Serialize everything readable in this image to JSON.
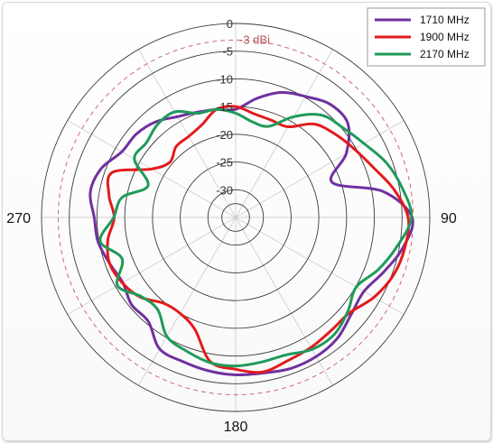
{
  "chart_data": {
    "type": "polar",
    "title": "",
    "radial_axis": {
      "ticks": [
        0,
        -5,
        -10,
        -15,
        -20,
        -25,
        -30
      ],
      "range": [
        -35,
        0
      ]
    },
    "reference": {
      "value": -3,
      "label": "-3 dBi",
      "style": "dashed",
      "color": "#c9646d"
    },
    "angle_labels": [
      {
        "angle": 90,
        "label": "90"
      },
      {
        "angle": 180,
        "label": "180"
      },
      {
        "angle": 270,
        "label": "270"
      }
    ],
    "angle_label_zero_shown": false,
    "spokes_every_deg": 30,
    "legend_position": "top-right",
    "series": [
      {
        "name": "1710 MHz",
        "color": "#7030a0",
        "points": [
          [
            0,
            -15.5
          ],
          [
            10,
            -13.2
          ],
          [
            20,
            -11.0
          ],
          [
            30,
            -9.8
          ],
          [
            40,
            -8.4
          ],
          [
            50,
            -8.6
          ],
          [
            60,
            -12.0
          ],
          [
            70,
            -16.5
          ],
          [
            80,
            -8.0
          ],
          [
            90,
            -3.2
          ],
          [
            100,
            -4.3
          ],
          [
            110,
            -6.5
          ],
          [
            120,
            -8.3
          ],
          [
            130,
            -7.8
          ],
          [
            140,
            -6.5
          ],
          [
            150,
            -6.0
          ],
          [
            160,
            -6.0
          ],
          [
            170,
            -6.5
          ],
          [
            180,
            -6.6
          ],
          [
            190,
            -6.9
          ],
          [
            200,
            -7.3
          ],
          [
            210,
            -7.6
          ],
          [
            220,
            -10.5
          ],
          [
            230,
            -10.5
          ],
          [
            240,
            -11.5
          ],
          [
            250,
            -10.8
          ],
          [
            260,
            -9.8
          ],
          [
            270,
            -9.5
          ],
          [
            280,
            -8.4
          ],
          [
            290,
            -9.2
          ],
          [
            300,
            -11.3
          ],
          [
            310,
            -11.6
          ],
          [
            320,
            -12.5
          ],
          [
            330,
            -14.0
          ],
          [
            340,
            -14.8
          ],
          [
            350,
            -15.2
          ]
        ]
      },
      {
        "name": "1900 MHz",
        "color": "#e31a1c",
        "points": [
          [
            0,
            -15.0
          ],
          [
            10,
            -16.0
          ],
          [
            20,
            -16.3
          ],
          [
            30,
            -16.1
          ],
          [
            40,
            -13.0
          ],
          [
            50,
            -11.6
          ],
          [
            60,
            -10.3
          ],
          [
            70,
            -8.6
          ],
          [
            80,
            -6.0
          ],
          [
            90,
            -3.9
          ],
          [
            100,
            -4.0
          ],
          [
            110,
            -4.7
          ],
          [
            120,
            -6.2
          ],
          [
            130,
            -8.2
          ],
          [
            140,
            -8.3
          ],
          [
            150,
            -7.9
          ],
          [
            160,
            -7.5
          ],
          [
            170,
            -6.7
          ],
          [
            180,
            -7.6
          ],
          [
            190,
            -8.6
          ],
          [
            200,
            -13.5
          ],
          [
            210,
            -15.0
          ],
          [
            220,
            -14.8
          ],
          [
            230,
            -12.6
          ],
          [
            240,
            -11.4
          ],
          [
            250,
            -10.8
          ],
          [
            260,
            -11.6
          ],
          [
            270,
            -13.1
          ],
          [
            280,
            -11.8
          ],
          [
            290,
            -11.3
          ],
          [
            300,
            -17.5
          ],
          [
            310,
            -19.5
          ],
          [
            320,
            -18.3
          ],
          [
            330,
            -18.1
          ],
          [
            340,
            -17.2
          ],
          [
            350,
            -15.2
          ]
        ]
      },
      {
        "name": "2170 MHz",
        "color": "#1f9a5a",
        "points": [
          [
            0,
            -16.2
          ],
          [
            10,
            -17.5
          ],
          [
            20,
            -17.5
          ],
          [
            30,
            -14.0
          ],
          [
            40,
            -10.9
          ],
          [
            50,
            -9.8
          ],
          [
            60,
            -8.3
          ],
          [
            70,
            -6.1
          ],
          [
            80,
            -4.5
          ],
          [
            90,
            -3.3
          ],
          [
            100,
            -5.4
          ],
          [
            110,
            -7.6
          ],
          [
            120,
            -9.9
          ],
          [
            130,
            -8.6
          ],
          [
            140,
            -7.4
          ],
          [
            150,
            -7.5
          ],
          [
            160,
            -8.6
          ],
          [
            170,
            -8.5
          ],
          [
            180,
            -8.2
          ],
          [
            190,
            -8.4
          ],
          [
            200,
            -9.3
          ],
          [
            210,
            -10.2
          ],
          [
            220,
            -13.2
          ],
          [
            230,
            -12.8
          ],
          [
            240,
            -10.4
          ],
          [
            250,
            -13.2
          ],
          [
            260,
            -10.2
          ],
          [
            270,
            -13.0
          ],
          [
            280,
            -14.2
          ],
          [
            290,
            -18.2
          ],
          [
            300,
            -13.9
          ],
          [
            310,
            -14.0
          ],
          [
            320,
            -13.1
          ],
          [
            330,
            -13.0
          ],
          [
            340,
            -15.0
          ],
          [
            350,
            -15.2
          ]
        ]
      }
    ]
  }
}
